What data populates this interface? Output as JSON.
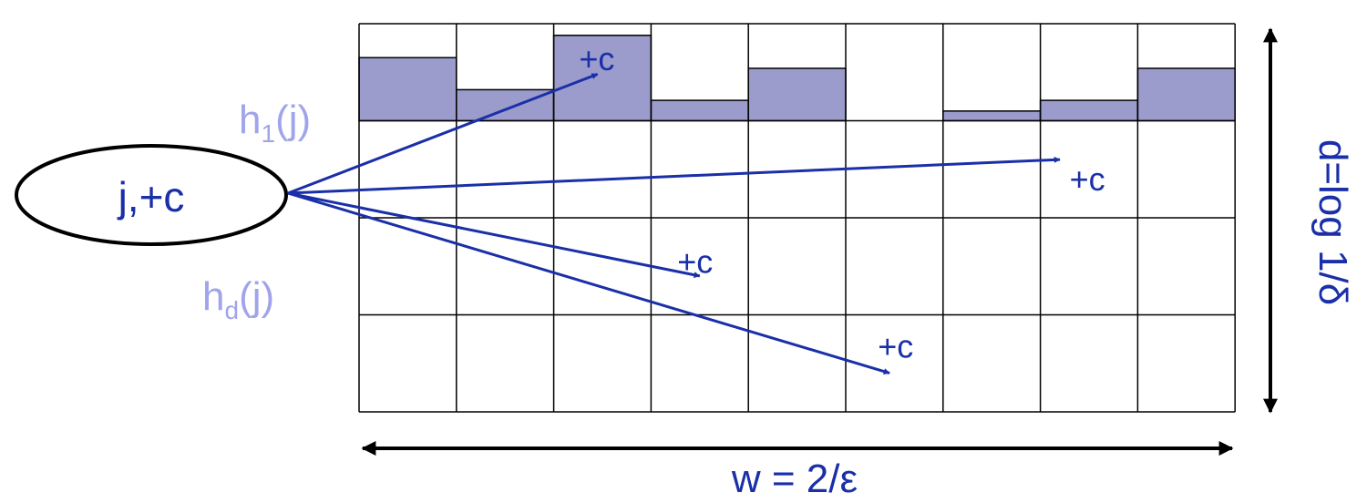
{
  "input": {
    "item_label": "j,+c"
  },
  "hash_labels": {
    "first": {
      "base": "h",
      "sub": "1",
      "arg": "(j)"
    },
    "last": {
      "base": "h",
      "sub": "d",
      "arg": "(j)"
    }
  },
  "increment_label": "+c",
  "dimensions": {
    "width_label": "w = 2/ε",
    "depth_label": "d=log 1/δ"
  },
  "grid": {
    "rows": 4,
    "columns": 9,
    "first_row_fill_levels": [
      0.65,
      0.32,
      0.88,
      0.21,
      0.54,
      0.0,
      0.1,
      0.21,
      0.54
    ]
  },
  "increments": [
    {
      "row": 1,
      "column": 3
    },
    {
      "row": 2,
      "column": 8
    },
    {
      "row": 3,
      "column": 4
    },
    {
      "row": 4,
      "column": 6
    }
  ],
  "colors": {
    "accent": "#1a2fa8",
    "hash_label": "#a0a4ea",
    "fill": "#9b9bcc",
    "grid_line": "#000000"
  }
}
